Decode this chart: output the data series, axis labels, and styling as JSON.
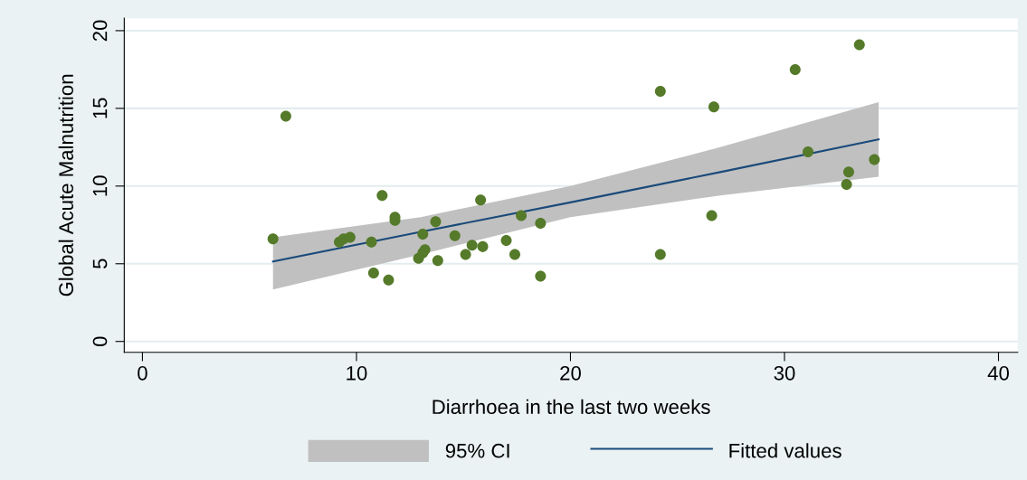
{
  "chart_data": {
    "type": "scatter",
    "xlabel": "Diarrhoea in the last two weeks",
    "ylabel": "Global Acute Malnutrition",
    "xlim": [
      -0.85,
      40.9
    ],
    "xticks": [
      0,
      10,
      20,
      30,
      40
    ],
    "ylim": [
      -0.7,
      20.8
    ],
    "yticks": [
      0,
      5,
      10,
      15,
      20
    ],
    "grid": "y",
    "legend": "bottom",
    "annotations": [
      "95% CI"
    ],
    "series": [
      {
        "name": "Fitted values",
        "type": "line",
        "color": "#1a4a7a",
        "line_style": "solid",
        "marker": "none",
        "x": [
          6.1,
          13,
          20,
          27,
          34.4
        ],
        "values": [
          5.15,
          7.05,
          8.95,
          10.9,
          13.0
        ],
        "lower": [
          3.35,
          5.6,
          8.0,
          9.4,
          10.6
        ],
        "upper": [
          6.7,
          8.0,
          10.0,
          12.5,
          15.4
        ]
      },
      {
        "color": "#557a2a",
        "marker": "circle",
        "x": [
          6.1,
          6.7,
          9.2,
          9.4,
          9.7,
          10.7,
          10.8,
          11.2,
          11.5,
          11.8,
          11.8,
          12.9,
          13.1,
          13.2,
          13.1,
          13.7,
          13.8,
          14.6,
          15.1,
          15.4,
          15.8,
          15.9,
          17.0,
          17.4,
          17.7,
          18.6,
          18.6,
          24.2,
          24.2,
          26.6,
          26.7,
          30.5,
          31.1,
          32.9,
          33.0,
          33.5,
          34.2
        ],
        "values": [
          6.6,
          14.5,
          6.4,
          6.6,
          6.7,
          6.4,
          4.4,
          9.4,
          3.95,
          8.0,
          7.8,
          5.35,
          6.9,
          5.9,
          5.7,
          7.7,
          5.2,
          6.8,
          5.6,
          6.2,
          9.1,
          6.1,
          6.5,
          5.6,
          8.1,
          7.6,
          4.2,
          16.1,
          5.6,
          8.1,
          15.1,
          17.5,
          12.2,
          10.1,
          10.9,
          19.1,
          11.7
        ]
      }
    ]
  }
}
